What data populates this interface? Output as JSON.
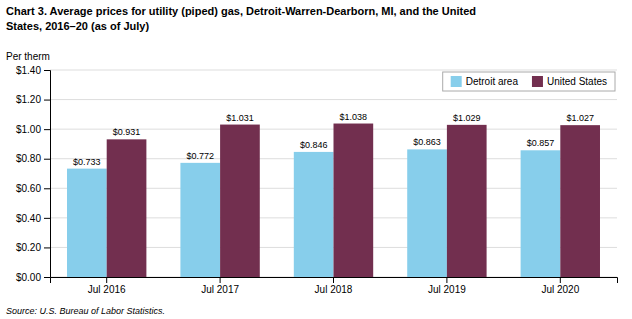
{
  "chart_data": {
    "type": "bar",
    "title": [
      "Chart 3. Average prices for utility (piped) gas, Detroit-Warren-Dearborn, MI, and the United",
      "States, 2016–20  (as of July)"
    ],
    "ylabel": "Per therm",
    "source": "Source: U.S. Bureau of Labor Statistics.",
    "categories": [
      "Jul 2016",
      "Jul 2017",
      "Jul 2018",
      "Jul 2019",
      "Jul 2020"
    ],
    "series": [
      {
        "name": "Detroit area",
        "color": "#87CEEB",
        "values": [
          0.733,
          0.772,
          0.846,
          0.863,
          0.857
        ],
        "value_labels": [
          "$0.733",
          "$0.772",
          "$0.846",
          "$0.863",
          "$0.857"
        ]
      },
      {
        "name": "United States",
        "color": "#722F4F",
        "values": [
          0.931,
          1.031,
          1.038,
          1.029,
          1.027
        ],
        "value_labels": [
          "$0.931",
          "$1.031",
          "$1.038",
          "$1.029",
          "$1.027"
        ]
      }
    ],
    "ylim": [
      0,
      1.4
    ],
    "yticks": [
      {
        "value": 0.0,
        "label": "$0.00"
      },
      {
        "value": 0.2,
        "label": "$0.20"
      },
      {
        "value": 0.4,
        "label": "$0.40"
      },
      {
        "value": 0.6,
        "label": "$0.60"
      },
      {
        "value": 0.8,
        "label": "$0.80"
      },
      {
        "value": 1.0,
        "label": "$1.00"
      },
      {
        "value": 1.2,
        "label": "$1.20"
      },
      {
        "value": 1.4,
        "label": "$1.40"
      }
    ],
    "grid": true,
    "legend": "upper right",
    "data_labels": true
  }
}
